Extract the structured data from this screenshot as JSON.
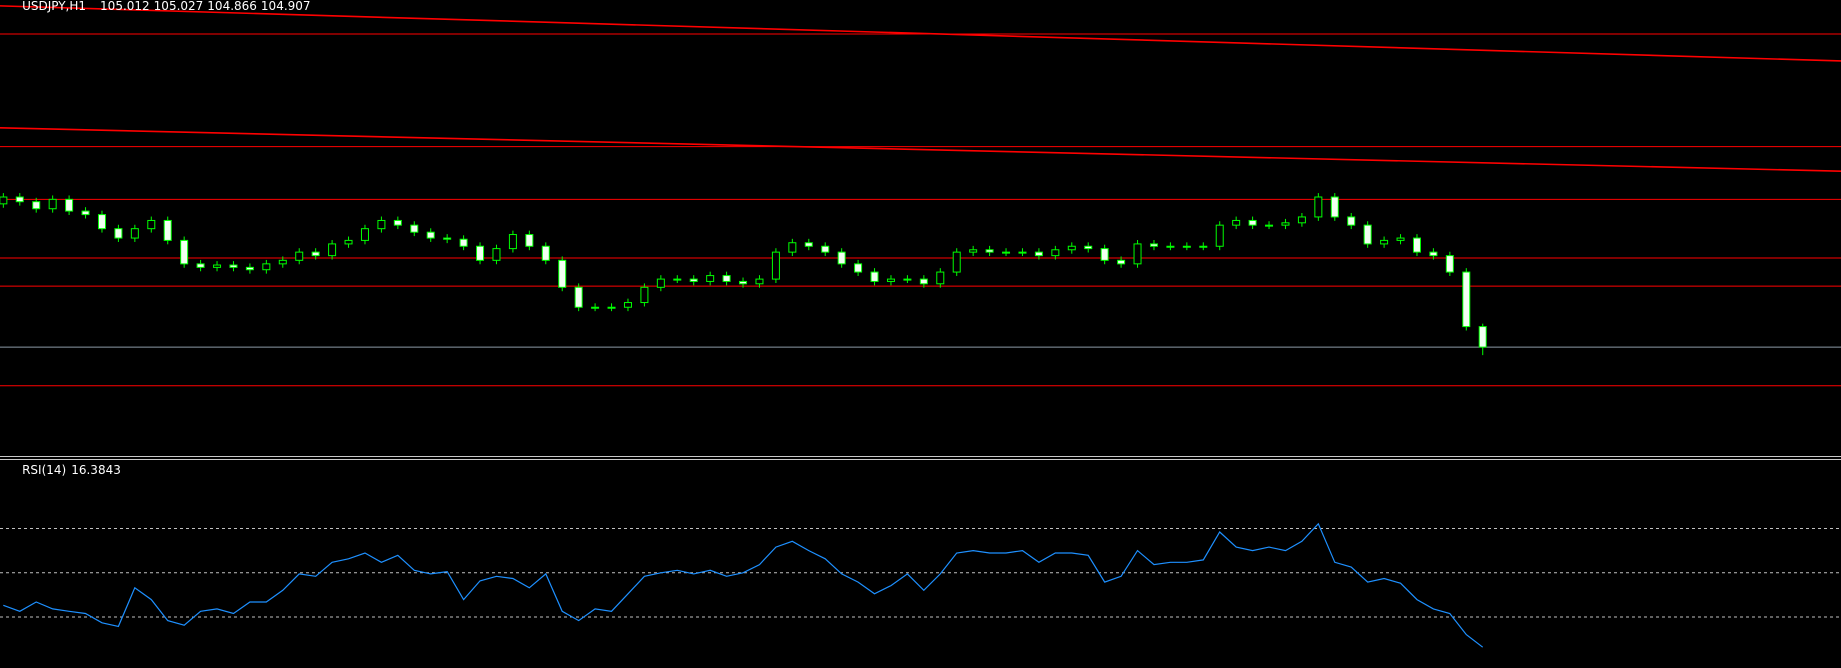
{
  "chart_data": [
    {
      "type": "candlestick",
      "title": "USDJPY,H1",
      "open": [
        105.64,
        105.675,
        105.651,
        105.615,
        105.663,
        105.603,
        105.585,
        105.513,
        105.465,
        105.513,
        105.555,
        105.453,
        105.333,
        105.315,
        105.327,
        105.315,
        105.303,
        105.333,
        105.351,
        105.393,
        105.375,
        105.435,
        105.453,
        105.513,
        105.555,
        105.531,
        105.495,
        105.465,
        105.459,
        105.423,
        105.351,
        105.411,
        105.483,
        105.423,
        105.351,
        105.213,
        105.111,
        105.111,
        105.111,
        105.135,
        105.213,
        105.255,
        105.255,
        105.243,
        105.273,
        105.243,
        105.231,
        105.255,
        105.393,
        105.441,
        105.423,
        105.393,
        105.333,
        105.291,
        105.243,
        105.255,
        105.255,
        105.231,
        105.291,
        105.393,
        105.405,
        105.393,
        105.393,
        105.393,
        105.375,
        105.405,
        105.423,
        105.411,
        105.351,
        105.333,
        105.435,
        105.423,
        105.423,
        105.423,
        105.423,
        105.531,
        105.555,
        105.531,
        105.531,
        105.543,
        105.573,
        105.675,
        105.573,
        105.531,
        105.435,
        105.453,
        105.465,
        105.393,
        105.375,
        105.291,
        105.012
      ],
      "high": [
        105.695,
        105.695,
        105.671,
        105.683,
        105.683,
        105.623,
        105.605,
        105.533,
        105.533,
        105.575,
        105.575,
        105.473,
        105.353,
        105.347,
        105.347,
        105.335,
        105.353,
        105.371,
        105.413,
        105.413,
        105.455,
        105.473,
        105.533,
        105.575,
        105.575,
        105.551,
        105.515,
        105.485,
        105.479,
        105.443,
        105.431,
        105.503,
        105.503,
        105.443,
        105.371,
        105.233,
        105.131,
        105.131,
        105.155,
        105.233,
        105.275,
        105.275,
        105.275,
        105.293,
        105.293,
        105.263,
        105.275,
        105.413,
        105.461,
        105.461,
        105.443,
        105.413,
        105.353,
        105.311,
        105.275,
        105.275,
        105.275,
        105.311,
        105.413,
        105.425,
        105.425,
        105.413,
        105.413,
        105.413,
        105.425,
        105.443,
        105.443,
        105.431,
        105.371,
        105.455,
        105.455,
        105.443,
        105.443,
        105.443,
        105.551,
        105.575,
        105.575,
        105.551,
        105.563,
        105.593,
        105.695,
        105.695,
        105.593,
        105.551,
        105.473,
        105.485,
        105.485,
        105.413,
        105.395,
        105.311,
        105.027
      ],
      "low": [
        105.62,
        105.631,
        105.595,
        105.595,
        105.583,
        105.565,
        105.493,
        105.445,
        105.445,
        105.493,
        105.433,
        105.313,
        105.295,
        105.295,
        105.295,
        105.283,
        105.283,
        105.313,
        105.331,
        105.355,
        105.355,
        105.415,
        105.433,
        105.493,
        105.511,
        105.475,
        105.445,
        105.439,
        105.403,
        105.331,
        105.331,
        105.391,
        105.403,
        105.331,
        105.193,
        105.091,
        105.091,
        105.091,
        105.091,
        105.115,
        105.193,
        105.235,
        105.223,
        105.223,
        105.223,
        105.211,
        105.211,
        105.235,
        105.373,
        105.403,
        105.373,
        105.313,
        105.271,
        105.223,
        105.223,
        105.235,
        105.211,
        105.211,
        105.271,
        105.373,
        105.373,
        105.373,
        105.373,
        105.355,
        105.355,
        105.385,
        105.391,
        105.331,
        105.313,
        105.313,
        105.403,
        105.403,
        105.403,
        105.403,
        105.403,
        105.511,
        105.511,
        105.511,
        105.511,
        105.523,
        105.553,
        105.553,
        105.511,
        105.415,
        105.415,
        105.433,
        105.373,
        105.355,
        105.271,
        104.992,
        104.866
      ],
      "close": [
        105.675,
        105.651,
        105.615,
        105.663,
        105.603,
        105.585,
        105.513,
        105.465,
        105.513,
        105.555,
        105.453,
        105.333,
        105.315,
        105.327,
        105.315,
        105.303,
        105.333,
        105.351,
        105.393,
        105.375,
        105.435,
        105.453,
        105.513,
        105.555,
        105.531,
        105.495,
        105.465,
        105.459,
        105.423,
        105.351,
        105.411,
        105.483,
        105.423,
        105.351,
        105.213,
        105.111,
        105.111,
        105.111,
        105.135,
        105.213,
        105.255,
        105.255,
        105.243,
        105.273,
        105.243,
        105.231,
        105.255,
        105.393,
        105.441,
        105.423,
        105.393,
        105.333,
        105.291,
        105.243,
        105.255,
        105.255,
        105.231,
        105.291,
        105.393,
        105.405,
        105.393,
        105.393,
        105.393,
        105.375,
        105.405,
        105.423,
        105.411,
        105.351,
        105.333,
        105.435,
        105.423,
        105.423,
        105.423,
        105.423,
        105.531,
        105.555,
        105.531,
        105.531,
        105.543,
        105.573,
        105.675,
        105.573,
        105.531,
        105.435,
        105.453,
        105.465,
        105.393,
        105.375,
        105.291,
        105.012,
        104.907
      ],
      "ylim": [
        104.355,
        106.683
      ],
      "hlines": [
        106.509,
        105.933,
        105.663,
        105.363,
        105.219,
        104.709
      ],
      "hline_color": "#ff0000",
      "trendlines": [
        [
          106.653,
          106.371
        ],
        [
          106.029,
          105.807
        ]
      ],
      "trendline_color": "#ff0000",
      "bid_line_color": "#8c9aa6",
      "bull_color": "#000000",
      "bear_color": "#f2fff2",
      "wick_color": "#00ff00"
    },
    {
      "type": "line",
      "title": "RSI(14)",
      "values": [
        35.3,
        32.6,
        36.8,
        33.7,
        32.6,
        31.6,
        27.4,
        25.8,
        43.2,
        37.9,
        28.4,
        26.3,
        32.6,
        33.7,
        31.6,
        36.8,
        36.8,
        42.1,
        49.5,
        48.4,
        54.7,
        56.3,
        58.9,
        54.7,
        57.9,
        51.1,
        49.5,
        50.5,
        37.9,
        46.3,
        48.4,
        47.4,
        43.2,
        49.5,
        32.6,
        28.4,
        33.7,
        32.6,
        40.5,
        48.4,
        50.0,
        51.1,
        49.5,
        51.1,
        48.4,
        50.0,
        53.7,
        61.6,
        64.2,
        60.0,
        56.3,
        49.5,
        45.8,
        40.5,
        44.2,
        49.5,
        42.1,
        49.5,
        58.9,
        60.0,
        58.9,
        58.9,
        60.0,
        54.7,
        58.9,
        58.9,
        57.9,
        45.8,
        48.4,
        60.0,
        53.7,
        54.7,
        54.7,
        55.8,
        68.4,
        61.6,
        60.0,
        61.6,
        60.0,
        64.2,
        72.1,
        54.7,
        52.6,
        45.8,
        47.4,
        45.3,
        37.9,
        33.7,
        31.6,
        22.1,
        16.3843
      ],
      "color": "#1e90ff",
      "ylim": [
        7,
        100
      ],
      "levels": [
        30,
        50,
        70
      ]
    }
  ]
}
